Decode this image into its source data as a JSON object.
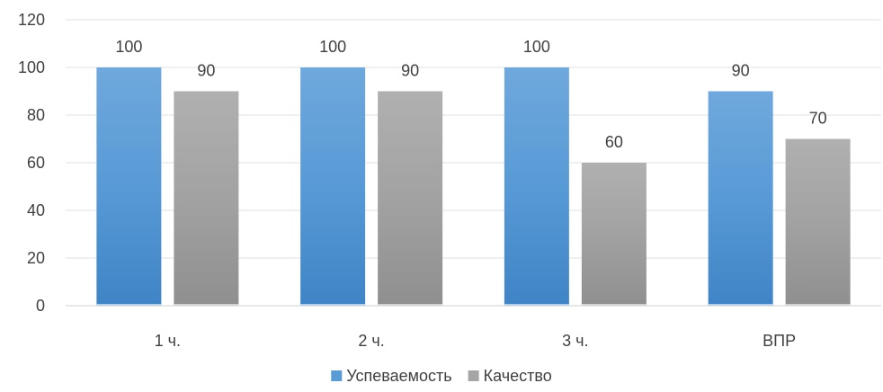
{
  "chart_data": {
    "type": "bar",
    "title": "",
    "xlabel": "",
    "ylabel": "",
    "categories": [
      "1 ч.",
      "2 ч.",
      "3 ч.",
      "ВПР"
    ],
    "series": [
      {
        "name": "Успеваемость",
        "values": [
          100,
          100,
          100,
          90
        ],
        "color": "#5b9bd5"
      },
      {
        "name": "Качество",
        "values": [
          90,
          90,
          60,
          70
        ],
        "color": "#a5a5a5"
      }
    ],
    "ylim": [
      0,
      120
    ],
    "yticks": [
      0,
      20,
      40,
      60,
      80,
      100,
      120
    ],
    "grid": true,
    "legend": "bottom-center",
    "data_labels": true
  }
}
